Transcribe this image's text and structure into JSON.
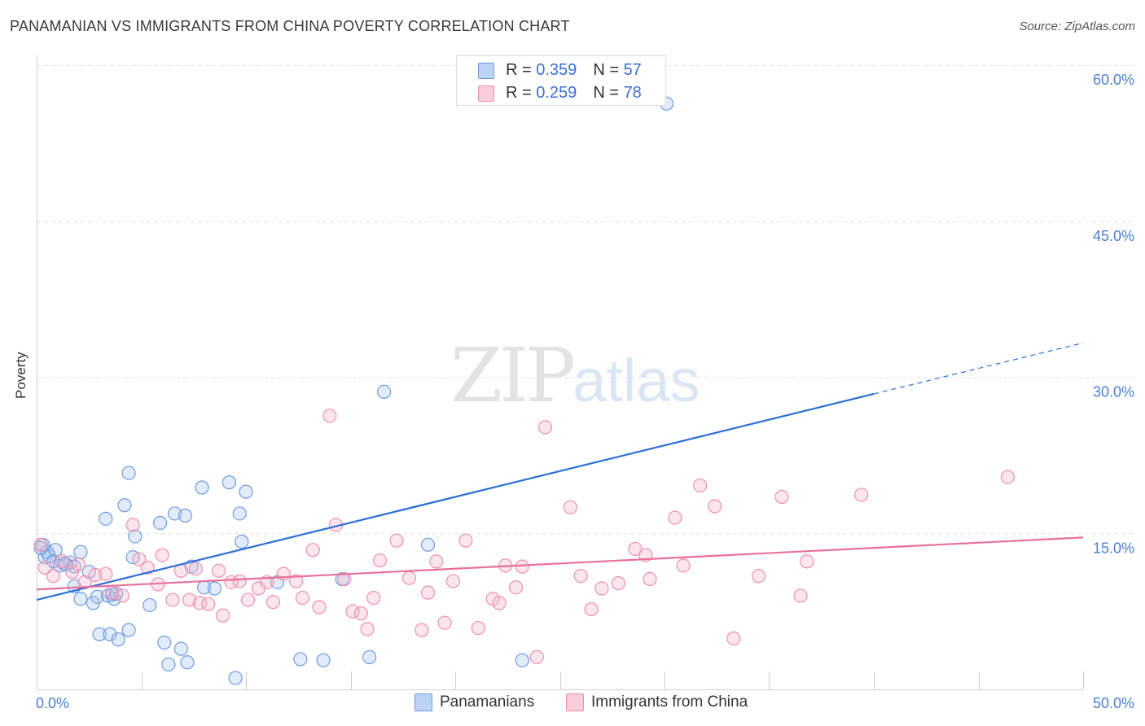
{
  "header": {
    "title": "PANAMANIAN VS IMMIGRANTS FROM CHINA POVERTY CORRELATION CHART",
    "source": "Source: ZipAtlas.com"
  },
  "watermark": {
    "zip": "ZIP",
    "atlas": "atlas"
  },
  "legend": {
    "r_label": "R = ",
    "n_label": "N = ",
    "rows": [
      {
        "r": "0.359",
        "n": "57",
        "color": "#a9c5ee"
      },
      {
        "r": "0.259",
        "n": "78",
        "color": "#f5b8cb"
      }
    ]
  },
  "bottom_legend": [
    "Panamanians",
    "Immigrants from China"
  ],
  "chart_data": {
    "type": "scatter",
    "title": "PANAMANIAN VS IMMIGRANTS FROM CHINA POVERTY CORRELATION CHART",
    "xlabel": "",
    "ylabel": "Poverty",
    "xlim": [
      0,
      50
    ],
    "ylim": [
      0,
      60
    ],
    "x_tick_labels": [
      "0.0%",
      "50.0%"
    ],
    "y_tick_labels": [
      "15.0%",
      "30.0%",
      "45.0%",
      "60.0%"
    ],
    "y_ticks": [
      15,
      30,
      45,
      60
    ],
    "grid": true,
    "legend_position": "top-center",
    "series": [
      {
        "name": "Panamanians",
        "color": "#6f9be0",
        "fill": "#a9c5ee",
        "trend": {
          "x": [
            0,
            40
          ],
          "y": [
            8.6,
            28.4
          ],
          "dashed_extension_to": [
            50,
            33.3
          ]
        },
        "points": [
          [
            0.3,
            13.9
          ],
          [
            0.4,
            12.7
          ],
          [
            0.5,
            13.2
          ],
          [
            0.6,
            12.8
          ],
          [
            0.8,
            12.3
          ],
          [
            0.9,
            13.4
          ],
          [
            1.1,
            11.9
          ],
          [
            1.3,
            12.1
          ],
          [
            1.6,
            12.2
          ],
          [
            1.8,
            11.8
          ],
          [
            1.8,
            9.9
          ],
          [
            2.1,
            13.2
          ],
          [
            2.1,
            8.7
          ],
          [
            2.5,
            11.3
          ],
          [
            2.7,
            8.3
          ],
          [
            2.9,
            8.9
          ],
          [
            3.0,
            5.3
          ],
          [
            3.3,
            16.4
          ],
          [
            3.4,
            9.0
          ],
          [
            3.5,
            5.3
          ],
          [
            3.6,
            9.1
          ],
          [
            3.7,
            8.7
          ],
          [
            3.9,
            4.8
          ],
          [
            4.2,
            17.7
          ],
          [
            4.4,
            20.8
          ],
          [
            4.4,
            5.7
          ],
          [
            4.6,
            12.7
          ],
          [
            4.7,
            14.7
          ],
          [
            5.4,
            8.1
          ],
          [
            5.9,
            16.0
          ],
          [
            6.1,
            4.5
          ],
          [
            6.3,
            2.4
          ],
          [
            6.6,
            16.9
          ],
          [
            6.9,
            3.9
          ],
          [
            7.1,
            16.7
          ],
          [
            7.2,
            2.6
          ],
          [
            7.4,
            11.8
          ],
          [
            7.9,
            19.4
          ],
          [
            8.0,
            9.8
          ],
          [
            8.5,
            9.7
          ],
          [
            9.2,
            19.9
          ],
          [
            9.5,
            1.1
          ],
          [
            9.7,
            16.9
          ],
          [
            9.8,
            14.2
          ],
          [
            10.0,
            19.0
          ],
          [
            11.5,
            10.3
          ],
          [
            12.6,
            2.9
          ],
          [
            13.7,
            2.8
          ],
          [
            14.6,
            10.6
          ],
          [
            15.9,
            3.1
          ],
          [
            16.6,
            28.6
          ],
          [
            18.7,
            13.9
          ],
          [
            23.2,
            2.8
          ],
          [
            30.1,
            56.3
          ],
          [
            0.2,
            13.6
          ],
          [
            1.4,
            12.0
          ],
          [
            3.8,
            9.2
          ]
        ]
      },
      {
        "name": "Immigrants from China",
        "color": "#ee8fae",
        "fill": "#f5b8cb",
        "trend": {
          "x": [
            0,
            50
          ],
          "y": [
            9.6,
            14.6
          ]
        },
        "points": [
          [
            0.2,
            13.9
          ],
          [
            0.4,
            11.7
          ],
          [
            0.8,
            10.9
          ],
          [
            1.2,
            12.3
          ],
          [
            1.7,
            11.3
          ],
          [
            2.0,
            12.0
          ],
          [
            2.3,
            10.3
          ],
          [
            2.8,
            11.0
          ],
          [
            3.3,
            11.1
          ],
          [
            3.6,
            9.3
          ],
          [
            4.1,
            9.0
          ],
          [
            4.6,
            15.8
          ],
          [
            4.9,
            12.5
          ],
          [
            5.3,
            11.7
          ],
          [
            5.8,
            10.1
          ],
          [
            6.0,
            12.9
          ],
          [
            6.5,
            8.6
          ],
          [
            6.9,
            11.4
          ],
          [
            7.3,
            8.6
          ],
          [
            7.6,
            11.6
          ],
          [
            7.8,
            8.3
          ],
          [
            8.2,
            8.2
          ],
          [
            8.7,
            11.4
          ],
          [
            8.9,
            7.1
          ],
          [
            9.3,
            10.3
          ],
          [
            9.7,
            10.4
          ],
          [
            10.1,
            8.6
          ],
          [
            10.6,
            9.7
          ],
          [
            11.0,
            10.3
          ],
          [
            11.3,
            8.4
          ],
          [
            11.8,
            11.1
          ],
          [
            12.4,
            10.4
          ],
          [
            12.7,
            8.8
          ],
          [
            13.2,
            13.4
          ],
          [
            13.5,
            7.9
          ],
          [
            14.0,
            26.3
          ],
          [
            14.3,
            15.8
          ],
          [
            14.7,
            10.6
          ],
          [
            15.1,
            7.5
          ],
          [
            15.5,
            7.3
          ],
          [
            15.8,
            5.8
          ],
          [
            16.1,
            8.8
          ],
          [
            16.4,
            12.4
          ],
          [
            17.2,
            14.3
          ],
          [
            17.8,
            10.7
          ],
          [
            18.4,
            5.7
          ],
          [
            18.7,
            9.3
          ],
          [
            19.1,
            12.3
          ],
          [
            19.5,
            6.4
          ],
          [
            19.9,
            10.4
          ],
          [
            20.5,
            14.3
          ],
          [
            21.1,
            5.9
          ],
          [
            21.8,
            8.7
          ],
          [
            22.1,
            8.3
          ],
          [
            22.4,
            11.9
          ],
          [
            22.9,
            9.8
          ],
          [
            23.2,
            11.8
          ],
          [
            23.9,
            3.1
          ],
          [
            24.3,
            25.2
          ],
          [
            25.5,
            17.5
          ],
          [
            26.0,
            10.9
          ],
          [
            26.5,
            7.7
          ],
          [
            27.0,
            9.7
          ],
          [
            27.8,
            10.2
          ],
          [
            28.6,
            13.5
          ],
          [
            29.1,
            12.9
          ],
          [
            29.3,
            10.6
          ],
          [
            30.5,
            16.5
          ],
          [
            30.9,
            11.9
          ],
          [
            31.7,
            19.6
          ],
          [
            32.4,
            17.6
          ],
          [
            33.3,
            4.9
          ],
          [
            34.5,
            10.9
          ],
          [
            35.6,
            18.5
          ],
          [
            36.5,
            9.0
          ],
          [
            36.8,
            12.3
          ],
          [
            39.4,
            18.7
          ],
          [
            46.4,
            20.4
          ]
        ]
      }
    ]
  }
}
